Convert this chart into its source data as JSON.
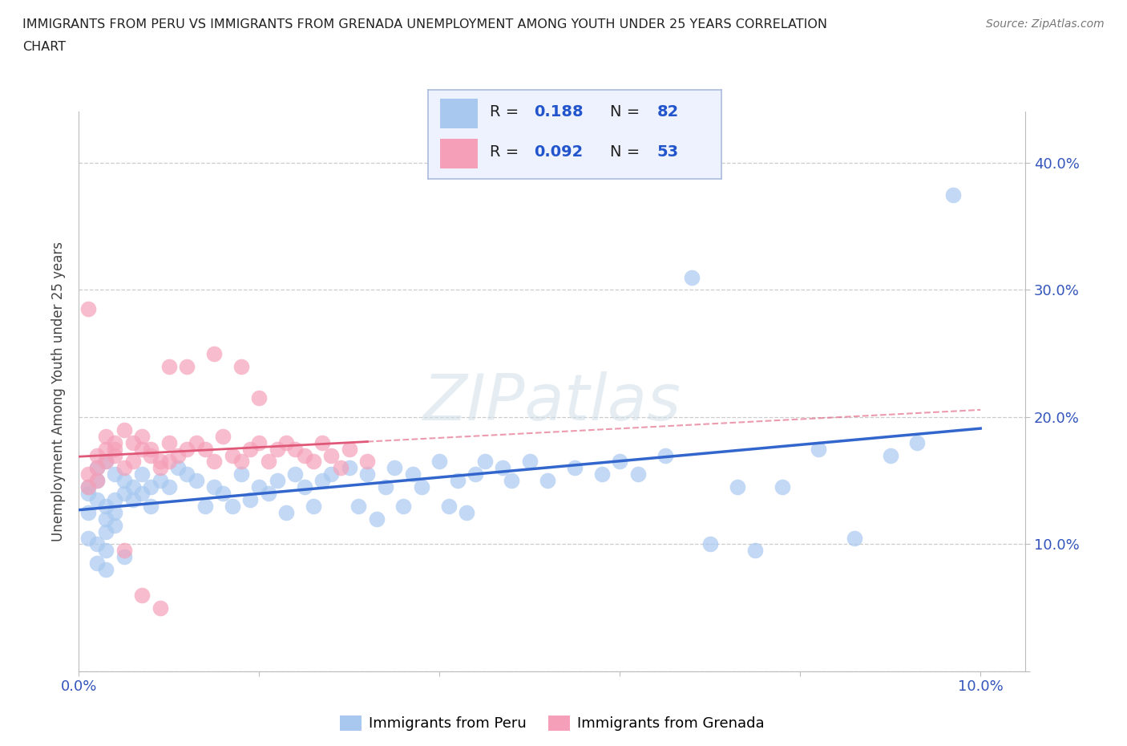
{
  "title_line1": "IMMIGRANTS FROM PERU VS IMMIGRANTS FROM GRENADA UNEMPLOYMENT AMONG YOUTH UNDER 25 YEARS CORRELATION",
  "title_line2": "CHART",
  "source_text": "Source: ZipAtlas.com",
  "ylabel_text": "Unemployment Among Youth under 25 years",
  "xlim": [
    0.0,
    0.105
  ],
  "ylim": [
    0.0,
    0.44
  ],
  "xtick_positions": [
    0.0,
    0.02,
    0.04,
    0.06,
    0.08,
    0.1
  ],
  "xticklabels": [
    "0.0%",
    "",
    "",
    "",
    "",
    "10.0%"
  ],
  "ytick_positions": [
    0.0,
    0.1,
    0.2,
    0.3,
    0.4
  ],
  "yticklabels_right": [
    "",
    "10.0%",
    "20.0%",
    "30.0%",
    "40.0%"
  ],
  "peru_R": 0.188,
  "peru_N": 82,
  "grenada_R": 0.092,
  "grenada_N": 53,
  "peru_color": "#a8c8f0",
  "grenada_color": "#f5a0b8",
  "peru_line_color": "#3366cc",
  "grenada_line_color": "#e05878",
  "background_color": "#ffffff",
  "grid_color": "#cccccc",
  "legend_box_color": "#e8f0ff",
  "legend_border_color": "#aaaacc",
  "tick_label_color": "#3355bb",
  "watermark_color": "#d8e8f0",
  "peru_scatter_x": [
    0.001,
    0.002,
    0.001,
    0.003,
    0.002,
    0.001,
    0.003,
    0.004,
    0.002,
    0.003,
    0.001,
    0.002,
    0.003,
    0.002,
    0.004,
    0.003,
    0.005,
    0.004,
    0.003,
    0.006,
    0.005,
    0.004,
    0.007,
    0.006,
    0.005,
    0.008,
    0.007,
    0.009,
    0.008,
    0.01,
    0.012,
    0.011,
    0.013,
    0.015,
    0.014,
    0.016,
    0.018,
    0.017,
    0.02,
    0.019,
    0.022,
    0.021,
    0.024,
    0.025,
    0.023,
    0.027,
    0.028,
    0.026,
    0.03,
    0.032,
    0.031,
    0.034,
    0.035,
    0.033,
    0.037,
    0.038,
    0.036,
    0.04,
    0.042,
    0.041,
    0.044,
    0.045,
    0.043,
    0.047,
    0.048,
    0.05,
    0.052,
    0.055,
    0.058,
    0.06,
    0.062,
    0.065,
    0.068,
    0.07,
    0.073,
    0.075,
    0.078,
    0.082,
    0.086,
    0.09,
    0.093,
    0.097
  ],
  "peru_scatter_y": [
    0.14,
    0.135,
    0.145,
    0.13,
    0.15,
    0.125,
    0.12,
    0.115,
    0.16,
    0.11,
    0.105,
    0.1,
    0.095,
    0.085,
    0.155,
    0.165,
    0.14,
    0.135,
    0.08,
    0.145,
    0.15,
    0.125,
    0.155,
    0.135,
    0.09,
    0.145,
    0.14,
    0.15,
    0.13,
    0.145,
    0.155,
    0.16,
    0.15,
    0.145,
    0.13,
    0.14,
    0.155,
    0.13,
    0.145,
    0.135,
    0.15,
    0.14,
    0.155,
    0.145,
    0.125,
    0.15,
    0.155,
    0.13,
    0.16,
    0.155,
    0.13,
    0.145,
    0.16,
    0.12,
    0.155,
    0.145,
    0.13,
    0.165,
    0.15,
    0.13,
    0.155,
    0.165,
    0.125,
    0.16,
    0.15,
    0.165,
    0.15,
    0.16,
    0.155,
    0.165,
    0.155,
    0.17,
    0.31,
    0.1,
    0.145,
    0.095,
    0.145,
    0.175,
    0.105,
    0.17,
    0.18,
    0.375
  ],
  "grenada_scatter_x": [
    0.001,
    0.001,
    0.002,
    0.002,
    0.003,
    0.003,
    0.001,
    0.004,
    0.002,
    0.004,
    0.003,
    0.005,
    0.004,
    0.006,
    0.005,
    0.007,
    0.006,
    0.008,
    0.007,
    0.009,
    0.008,
    0.01,
    0.009,
    0.011,
    0.01,
    0.012,
    0.013,
    0.014,
    0.015,
    0.016,
    0.017,
    0.018,
    0.019,
    0.02,
    0.021,
    0.022,
    0.023,
    0.024,
    0.025,
    0.026,
    0.027,
    0.028,
    0.029,
    0.03,
    0.032,
    0.01,
    0.012,
    0.015,
    0.018,
    0.02,
    0.005,
    0.007,
    0.009
  ],
  "grenada_scatter_y": [
    0.155,
    0.145,
    0.17,
    0.16,
    0.175,
    0.165,
    0.285,
    0.18,
    0.15,
    0.17,
    0.185,
    0.16,
    0.175,
    0.165,
    0.19,
    0.175,
    0.18,
    0.17,
    0.185,
    0.165,
    0.175,
    0.18,
    0.16,
    0.17,
    0.165,
    0.175,
    0.18,
    0.175,
    0.165,
    0.185,
    0.17,
    0.165,
    0.175,
    0.18,
    0.165,
    0.175,
    0.18,
    0.175,
    0.17,
    0.165,
    0.18,
    0.17,
    0.16,
    0.175,
    0.165,
    0.24,
    0.24,
    0.25,
    0.24,
    0.215,
    0.095,
    0.06,
    0.05
  ]
}
